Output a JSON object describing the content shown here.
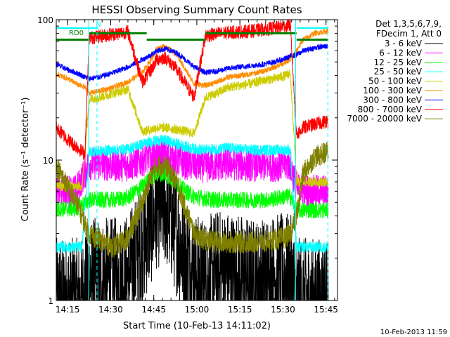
{
  "chart_data": {
    "type": "line",
    "title": "HESSI Observing Summary Count Rates",
    "xlabel": "Start Time (10-Feb-13 14:11:02)",
    "ylabel": "Count Rate (s⁻¹ detector⁻¹)",
    "yscale": "log",
    "ylim": [
      1,
      100
    ],
    "xlim": [
      "14:11:02",
      "15:49:00"
    ],
    "x_ticks": [
      "14:15",
      "14:30",
      "14:45",
      "15:00",
      "15:15",
      "15:30",
      "15:45"
    ],
    "x_tick_minutes": [
      3.97,
      18.97,
      33.97,
      48.97,
      63.97,
      78.97,
      93.97
    ],
    "y_ticks": [
      {
        "value": 1,
        "label": "1"
      },
      {
        "value": 10,
        "label": "10"
      },
      {
        "value": 100,
        "label": "100"
      }
    ],
    "legend": {
      "position": "right",
      "header": [
        "Det 1,3,5,6,7,9,",
        "FDecim 1, Att 0"
      ]
    },
    "series": [
      {
        "name": "3 - 6 keV",
        "color": "#000000",
        "x_min": [
          0,
          9,
          11.5,
          15,
          20,
          25,
          30,
          33,
          35,
          38,
          42,
          45,
          48,
          52,
          56,
          60,
          64,
          68,
          72,
          74,
          76,
          78,
          80,
          81.5,
          83.7,
          84,
          88,
          92,
          94.8
        ],
        "y": [
          1.0,
          1.0,
          1.4,
          1.4,
          1.4,
          1.5,
          2.5,
          3.6,
          4.7,
          4.9,
          3.0,
          2.0,
          1.5,
          1.4,
          1.6,
          1.6,
          1.5,
          1.4,
          1.4,
          1.5,
          1.5,
          1.5,
          1.5,
          1.5,
          1.0,
          1.0,
          1.0,
          1.0,
          1.0
        ]
      },
      {
        "name": "6 - 12 keV",
        "color": "#ff00ff",
        "x_min": [
          0,
          7,
          11.5,
          15,
          20,
          25,
          30,
          33,
          35,
          38,
          42,
          45,
          48,
          52,
          56,
          60,
          64,
          68,
          72,
          76,
          80,
          81.5,
          83.7,
          84,
          88,
          92,
          94.8
        ],
        "y": [
          6.0,
          6.0,
          9.5,
          9.4,
          9.2,
          9.2,
          10.0,
          10.5,
          10.8,
          10.8,
          10.0,
          9.5,
          9.3,
          9.0,
          9.2,
          9.4,
          9.3,
          9.2,
          9.2,
          9.2,
          9.3,
          9.3,
          6.5,
          6.2,
          6.0,
          6.0,
          6.0
        ]
      },
      {
        "name": "12 - 25 keV",
        "color": "#00ff00",
        "x_min": [
          0,
          7,
          11.5,
          15,
          20,
          25,
          30,
          33,
          35,
          38,
          42,
          45,
          48,
          52,
          56,
          60,
          64,
          68,
          72,
          76,
          80,
          81.5,
          83.7,
          84,
          88,
          92,
          94.8
        ],
        "y": [
          4.5,
          4.5,
          5.2,
          5.2,
          5.2,
          5.4,
          6.5,
          7.5,
          8.0,
          8.0,
          6.8,
          6.0,
          5.5,
          5.3,
          5.2,
          5.2,
          5.2,
          5.2,
          5.2,
          5.3,
          5.5,
          5.5,
          4.4,
          4.4,
          4.4,
          4.4,
          4.4
        ]
      },
      {
        "name": "25 - 50 keV",
        "color": "#00ffff",
        "x_min": [
          0,
          9,
          11.5,
          15,
          20,
          25,
          30,
          33,
          35,
          38,
          42,
          45,
          48,
          52,
          56,
          60,
          64,
          68,
          72,
          76,
          80,
          81.5,
          83.7,
          84,
          88,
          92,
          94.8
        ],
        "y": [
          2.4,
          2.4,
          11.5,
          11.6,
          11.8,
          12.0,
          13.0,
          13.5,
          13.8,
          13.8,
          13.0,
          12.5,
          12.0,
          11.8,
          12.0,
          12.2,
          12.0,
          11.8,
          11.8,
          11.8,
          11.8,
          11.8,
          2.4,
          2.4,
          2.4,
          2.4,
          2.4
        ]
      },
      {
        "name": "50 - 100 keV",
        "color": "#cccc00",
        "x_min": [
          0,
          9,
          11.5,
          15,
          20,
          25,
          30,
          33,
          35,
          38,
          42,
          45,
          48,
          52,
          56,
          60,
          64,
          68,
          72,
          76,
          80,
          81.5,
          83.7,
          84,
          88,
          92,
          94.8
        ],
        "y": [
          6.5,
          6.5,
          27.0,
          28.0,
          30.0,
          32.0,
          16.0,
          16.5,
          17.0,
          17.0,
          16.5,
          16.0,
          15.5,
          28.0,
          30.0,
          33.0,
          34.0,
          35.0,
          37.0,
          38.0,
          40.0,
          42.0,
          7.0,
          7.0,
          7.0,
          7.0,
          7.0
        ]
      },
      {
        "name": "100 - 300 keV",
        "color": "#ff8c00",
        "x_min": [
          0,
          4,
          8,
          10,
          11.5,
          15,
          20,
          25,
          30,
          33,
          35,
          38,
          42,
          45,
          48,
          52,
          56,
          60,
          64,
          68,
          72,
          76,
          80,
          81.5,
          83.7,
          86,
          90,
          94.8
        ],
        "y": [
          41.0,
          38.0,
          34.0,
          33.0,
          30.0,
          31.0,
          33.0,
          36.0,
          42.0,
          52.0,
          62.0,
          65.0,
          56.0,
          44.0,
          35.0,
          34.0,
          36.0,
          39.0,
          40.0,
          41.0,
          43.0,
          46.0,
          50.0,
          52.0,
          60.0,
          72.0,
          80.0,
          83.0
        ]
      },
      {
        "name": "300 - 800 keV",
        "color": "#0000ff",
        "x_min": [
          0,
          4,
          8,
          10,
          11.5,
          15,
          20,
          25,
          30,
          33,
          35,
          38,
          42,
          45,
          48,
          52,
          56,
          60,
          64,
          68,
          72,
          76,
          80,
          81.5,
          83.7,
          86,
          90,
          94.8
        ],
        "y": [
          48.0,
          44.0,
          41.0,
          39.0,
          38.0,
          39.0,
          42.0,
          46.0,
          52.0,
          56.0,
          60.0,
          62.0,
          58.0,
          52.0,
          46.0,
          42.0,
          43.0,
          45.0,
          46.0,
          47.0,
          48.0,
          50.0,
          53.0,
          55.0,
          56.0,
          60.0,
          63.0,
          65.0
        ]
      },
      {
        "name": "800 - 7000 keV",
        "color": "#ff0000",
        "x_min": [
          0,
          4,
          8,
          10,
          11.5,
          15,
          20,
          25,
          30,
          33,
          35,
          38,
          42,
          45,
          48,
          52,
          56,
          60,
          64,
          68,
          72,
          76,
          80,
          81.5,
          83.7,
          86,
          90,
          94.8
        ],
        "y": [
          17.0,
          14.0,
          12.0,
          11.0,
          74.0,
          76.0,
          79.0,
          82.0,
          36.0,
          44.0,
          52.0,
          54.0,
          44.0,
          35.0,
          28.0,
          77.0,
          79.0,
          81.0,
          82.0,
          83.0,
          85.0,
          87.0,
          90.0,
          93.0,
          15.0,
          17.0,
          18.0,
          19.0
        ]
      },
      {
        "name": "7000 - 20000 keV",
        "color": "#808000",
        "x_min": [
          0,
          4,
          8,
          10,
          11.5,
          15,
          20,
          25,
          30,
          33,
          35,
          38,
          42,
          45,
          48,
          52,
          56,
          60,
          64,
          68,
          72,
          76,
          80,
          81.5,
          83.7,
          86,
          90,
          94.8
        ],
        "y": [
          9.0,
          6.5,
          4.5,
          3.5,
          3.0,
          2.7,
          2.4,
          2.8,
          5.0,
          7.5,
          9.0,
          9.2,
          7.0,
          4.5,
          3.0,
          2.7,
          2.6,
          2.6,
          2.6,
          2.6,
          2.6,
          2.7,
          2.8,
          3.0,
          4.0,
          8.0,
          10.5,
          11.5
        ]
      }
    ],
    "annotations": {
      "top_bars": [
        {
          "label": "RD0",
          "color": "#00ffff",
          "x_start_min": 0.0,
          "x_end_min": 12.8
        },
        {
          "label": "N",
          "color": "#00ffff",
          "x_start_min": 12.8,
          "x_end_min": 14.5
        },
        {
          "label": "",
          "color": "#00ffff",
          "x_start_min": 83.7,
          "x_end_min": 94.8
        }
      ],
      "thresholds": [
        {
          "color": "#008000",
          "y": 72.0,
          "x_start_min": 0.0,
          "x_end_min": 11.5
        },
        {
          "color": "#008000",
          "y": 80.0,
          "x_start_min": 11.5,
          "x_end_min": 31.5
        },
        {
          "color": "#008000",
          "y": 72.0,
          "x_start_min": 31.5,
          "x_end_min": 52.0
        },
        {
          "color": "#008000",
          "y": 80.0,
          "x_start_min": 52.0,
          "x_end_min": 83.7
        },
        {
          "color": "#008000",
          "y": 72.0,
          "x_start_min": 83.7,
          "x_end_min": 94.8
        }
      ],
      "vlines": [
        {
          "color": "#00ffff",
          "x_min": 11.3,
          "style": "solid"
        },
        {
          "color": "#00ffff",
          "x_min": 14.2,
          "style": "dashed"
        },
        {
          "color": "#00ffff",
          "x_min": 83.4,
          "style": "solid"
        },
        {
          "color": "#00ffff",
          "x_min": 94.6,
          "style": "dashed"
        }
      ]
    }
  },
  "footer": {
    "timestamp": "10-Feb-2013 11:59"
  }
}
